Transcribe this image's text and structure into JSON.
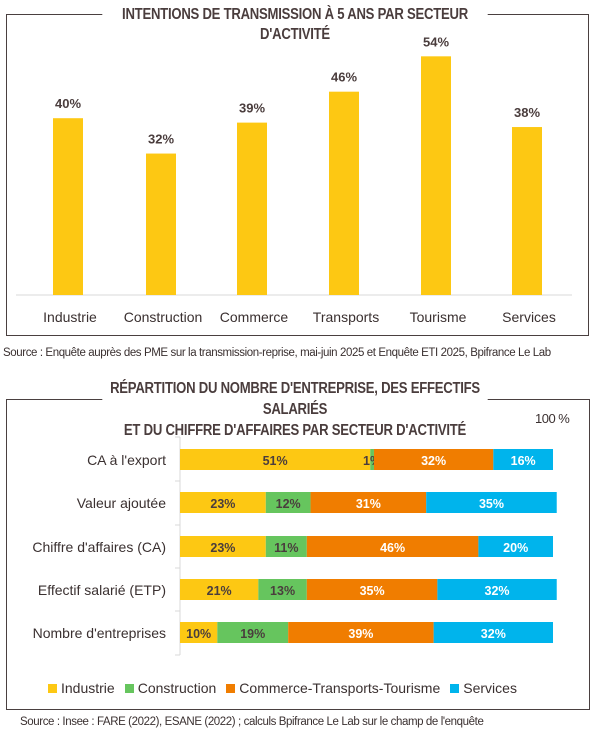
{
  "chart_data": [
    {
      "type": "bar",
      "title": "INTENTIONS DE TRANSMISSION À 5 ANS PAR SECTEUR D'ACTIVITÉ",
      "categories": [
        "Industrie",
        "Construction",
        "Commerce",
        "Transports",
        "Tourisme",
        "Services"
      ],
      "values": [
        40,
        32,
        39,
        46,
        54,
        38
      ],
      "labels": [
        "40%",
        "32%",
        "39%",
        "46%",
        "54%",
        "38%"
      ],
      "color": "#FDC813",
      "ylim": [
        0,
        60
      ],
      "grid": false,
      "source": "Source : Enquête auprès des PME sur la transmission-reprise, mai-juin 2025 et Enquête ETI 2025, Bpifrance Le Lab"
    },
    {
      "type": "bar",
      "orientation": "horizontal",
      "stacked": true,
      "title_line1": "RÉPARTITION DU NOMBRE D'ENTREPRISE, DES EFFECTIFS SALARIÉS",
      "title_line2": "ET DU CHIFFRE D'AFFAIRES PAR SECTEUR D'ACTIVITÉ",
      "axis_max_label": "100 %",
      "categories": [
        "CA à l'export",
        "Valeur ajoutée",
        "Chiffre d'affaires (CA)",
        "Effectif salarié (ETP)",
        "Nombre d'entreprises"
      ],
      "series": [
        {
          "name": "Industrie",
          "color": "#FDC813",
          "values": [
            51,
            23,
            23,
            21,
            10
          ],
          "labels": [
            "51%",
            "23%",
            "23%",
            "21%",
            "10%"
          ]
        },
        {
          "name": "Construction",
          "color": "#66C55E",
          "values": [
            1,
            12,
            11,
            13,
            19
          ],
          "labels": [
            "1%",
            "12%",
            "11%",
            "13%",
            "19%"
          ]
        },
        {
          "name": "Commerce-Transports-Tourisme",
          "color": "#F07D00",
          "values": [
            32,
            31,
            46,
            35,
            39
          ],
          "labels": [
            "32%",
            "31%",
            "46%",
            "35%",
            "39%"
          ]
        },
        {
          "name": "Services",
          "color": "#00B4EC",
          "values": [
            16,
            35,
            20,
            32,
            32
          ],
          "labels": [
            "16%",
            "35%",
            "20%",
            "32%",
            "32%"
          ]
        }
      ],
      "legend": "bottom",
      "source": "Source : Insee : FARE (2022), ESANE (2022) ; calculs Bpifrance Le Lab sur le champ de l'enquête"
    }
  ]
}
